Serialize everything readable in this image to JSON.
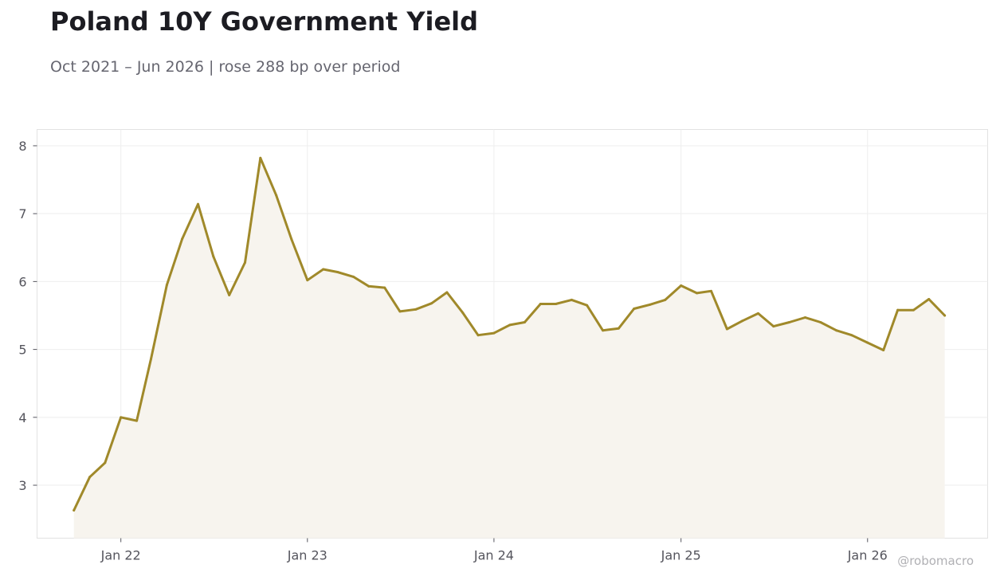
{
  "chart_data": {
    "type": "area",
    "title": "Poland 10Y Government Yield",
    "subtitle": "Oct 2021 – Jun 2026 | rose 288 bp over period",
    "xlabel": "",
    "ylabel": "",
    "ylim": [
      2.22,
      8.24
    ],
    "xlim": [
      "2021-07-21",
      "2026-08-24"
    ],
    "grid": true,
    "line_color": "#a0892a",
    "fill_color": "#f7f4ee",
    "y_ticks": [
      3,
      4,
      5,
      6,
      7,
      8
    ],
    "x_ticks": [
      {
        "date": "2022-01-01",
        "label": "Jan 22"
      },
      {
        "date": "2023-01-01",
        "label": "Jan 23"
      },
      {
        "date": "2024-01-01",
        "label": "Jan 24"
      },
      {
        "date": "2025-01-01",
        "label": "Jan 25"
      },
      {
        "date": "2026-01-01",
        "label": "Jan 26"
      }
    ],
    "series": [
      {
        "x": [
          "2021-10-01",
          "2021-11-01",
          "2021-12-01",
          "2022-01-01",
          "2022-02-01",
          "2022-03-01",
          "2022-04-01",
          "2022-05-01",
          "2022-06-01",
          "2022-07-01",
          "2022-08-01",
          "2022-09-01",
          "2022-10-01",
          "2022-11-01",
          "2022-12-01",
          "2023-01-01",
          "2023-02-01",
          "2023-03-01",
          "2023-04-01",
          "2023-05-01",
          "2023-06-01",
          "2023-07-01",
          "2023-08-01",
          "2023-09-01",
          "2023-10-01",
          "2023-11-01",
          "2023-12-01",
          "2024-01-01",
          "2024-02-01",
          "2024-03-01",
          "2024-04-01",
          "2024-05-01",
          "2024-06-01",
          "2024-07-01",
          "2024-08-01",
          "2024-09-01",
          "2024-10-01",
          "2024-11-01",
          "2024-12-01",
          "2025-01-01",
          "2025-02-01",
          "2025-03-01",
          "2025-04-01",
          "2025-05-01",
          "2025-06-01",
          "2025-07-01",
          "2025-08-01",
          "2025-09-01",
          "2025-10-01",
          "2025-11-01",
          "2025-12-01",
          "2026-01-01",
          "2026-02-01",
          "2026-03-01",
          "2026-04-01",
          "2026-05-01",
          "2026-06-01"
        ],
        "values": [
          2.63,
          3.12,
          3.33,
          4.0,
          3.95,
          4.86,
          5.95,
          6.63,
          7.14,
          6.37,
          5.8,
          6.28,
          7.82,
          7.27,
          6.62,
          6.02,
          6.18,
          6.14,
          6.07,
          5.93,
          5.91,
          5.56,
          5.59,
          5.68,
          5.84,
          5.54,
          5.21,
          5.24,
          5.36,
          5.4,
          5.67,
          5.67,
          5.73,
          5.65,
          5.28,
          5.31,
          5.6,
          5.66,
          5.73,
          5.94,
          5.83,
          5.86,
          5.3,
          5.42,
          5.53,
          5.34,
          5.4,
          5.47,
          5.4,
          5.28,
          5.21,
          5.1,
          4.99,
          5.58,
          5.58,
          5.74,
          5.5
        ]
      }
    ]
  },
  "watermark": "@robomacro"
}
